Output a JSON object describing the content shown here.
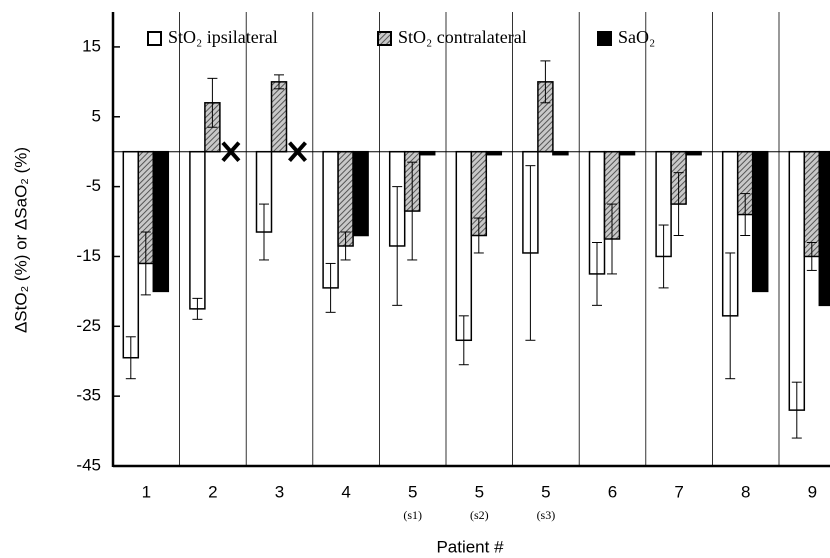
{
  "chart_data": {
    "type": "bar",
    "y_label": "ΔStO₂ (%) or ΔSaO₂ (%)",
    "x_label": "Patient #",
    "categories": [
      "1",
      "2",
      "3",
      "4",
      "5",
      "5",
      "5",
      "6",
      "7",
      "8",
      "9"
    ],
    "sublabels": [
      null,
      null,
      null,
      null,
      "(s1)",
      "(s2)",
      "(s3)",
      null,
      null,
      null,
      null
    ],
    "series": [
      {
        "name": "StO₂ ipsilateral",
        "color": "#ffffff",
        "values": [
          -29.5,
          -22.5,
          -11.5,
          -19.5,
          -13.5,
          -27,
          -14.5,
          -17.5,
          -15,
          -23.5,
          -37
        ],
        "errors": [
          3,
          1.5,
          4,
          3.5,
          8.5,
          3.5,
          12.5,
          4.5,
          4.5,
          9,
          4
        ]
      },
      {
        "name": "StO₂ contralateral",
        "color": "#8c8c8c",
        "hatch": true,
        "values": [
          -16,
          7,
          10,
          -13.5,
          -8.5,
          -12,
          10,
          -12.5,
          -7.5,
          -9,
          -15
        ],
        "errors": [
          4.5,
          3.5,
          1,
          2,
          7,
          2.5,
          3,
          5,
          4.5,
          3,
          2
        ]
      },
      {
        "name": "SaO₂",
        "color": "#000000",
        "values": [
          -20,
          null,
          null,
          -12,
          0,
          0,
          0,
          0,
          0,
          -20,
          -22
        ]
      }
    ],
    "ylim": [
      -45,
      20
    ],
    "yticks": [
      15,
      5,
      -5,
      -15,
      -25,
      -35,
      -45
    ],
    "group_separators": true
  }
}
